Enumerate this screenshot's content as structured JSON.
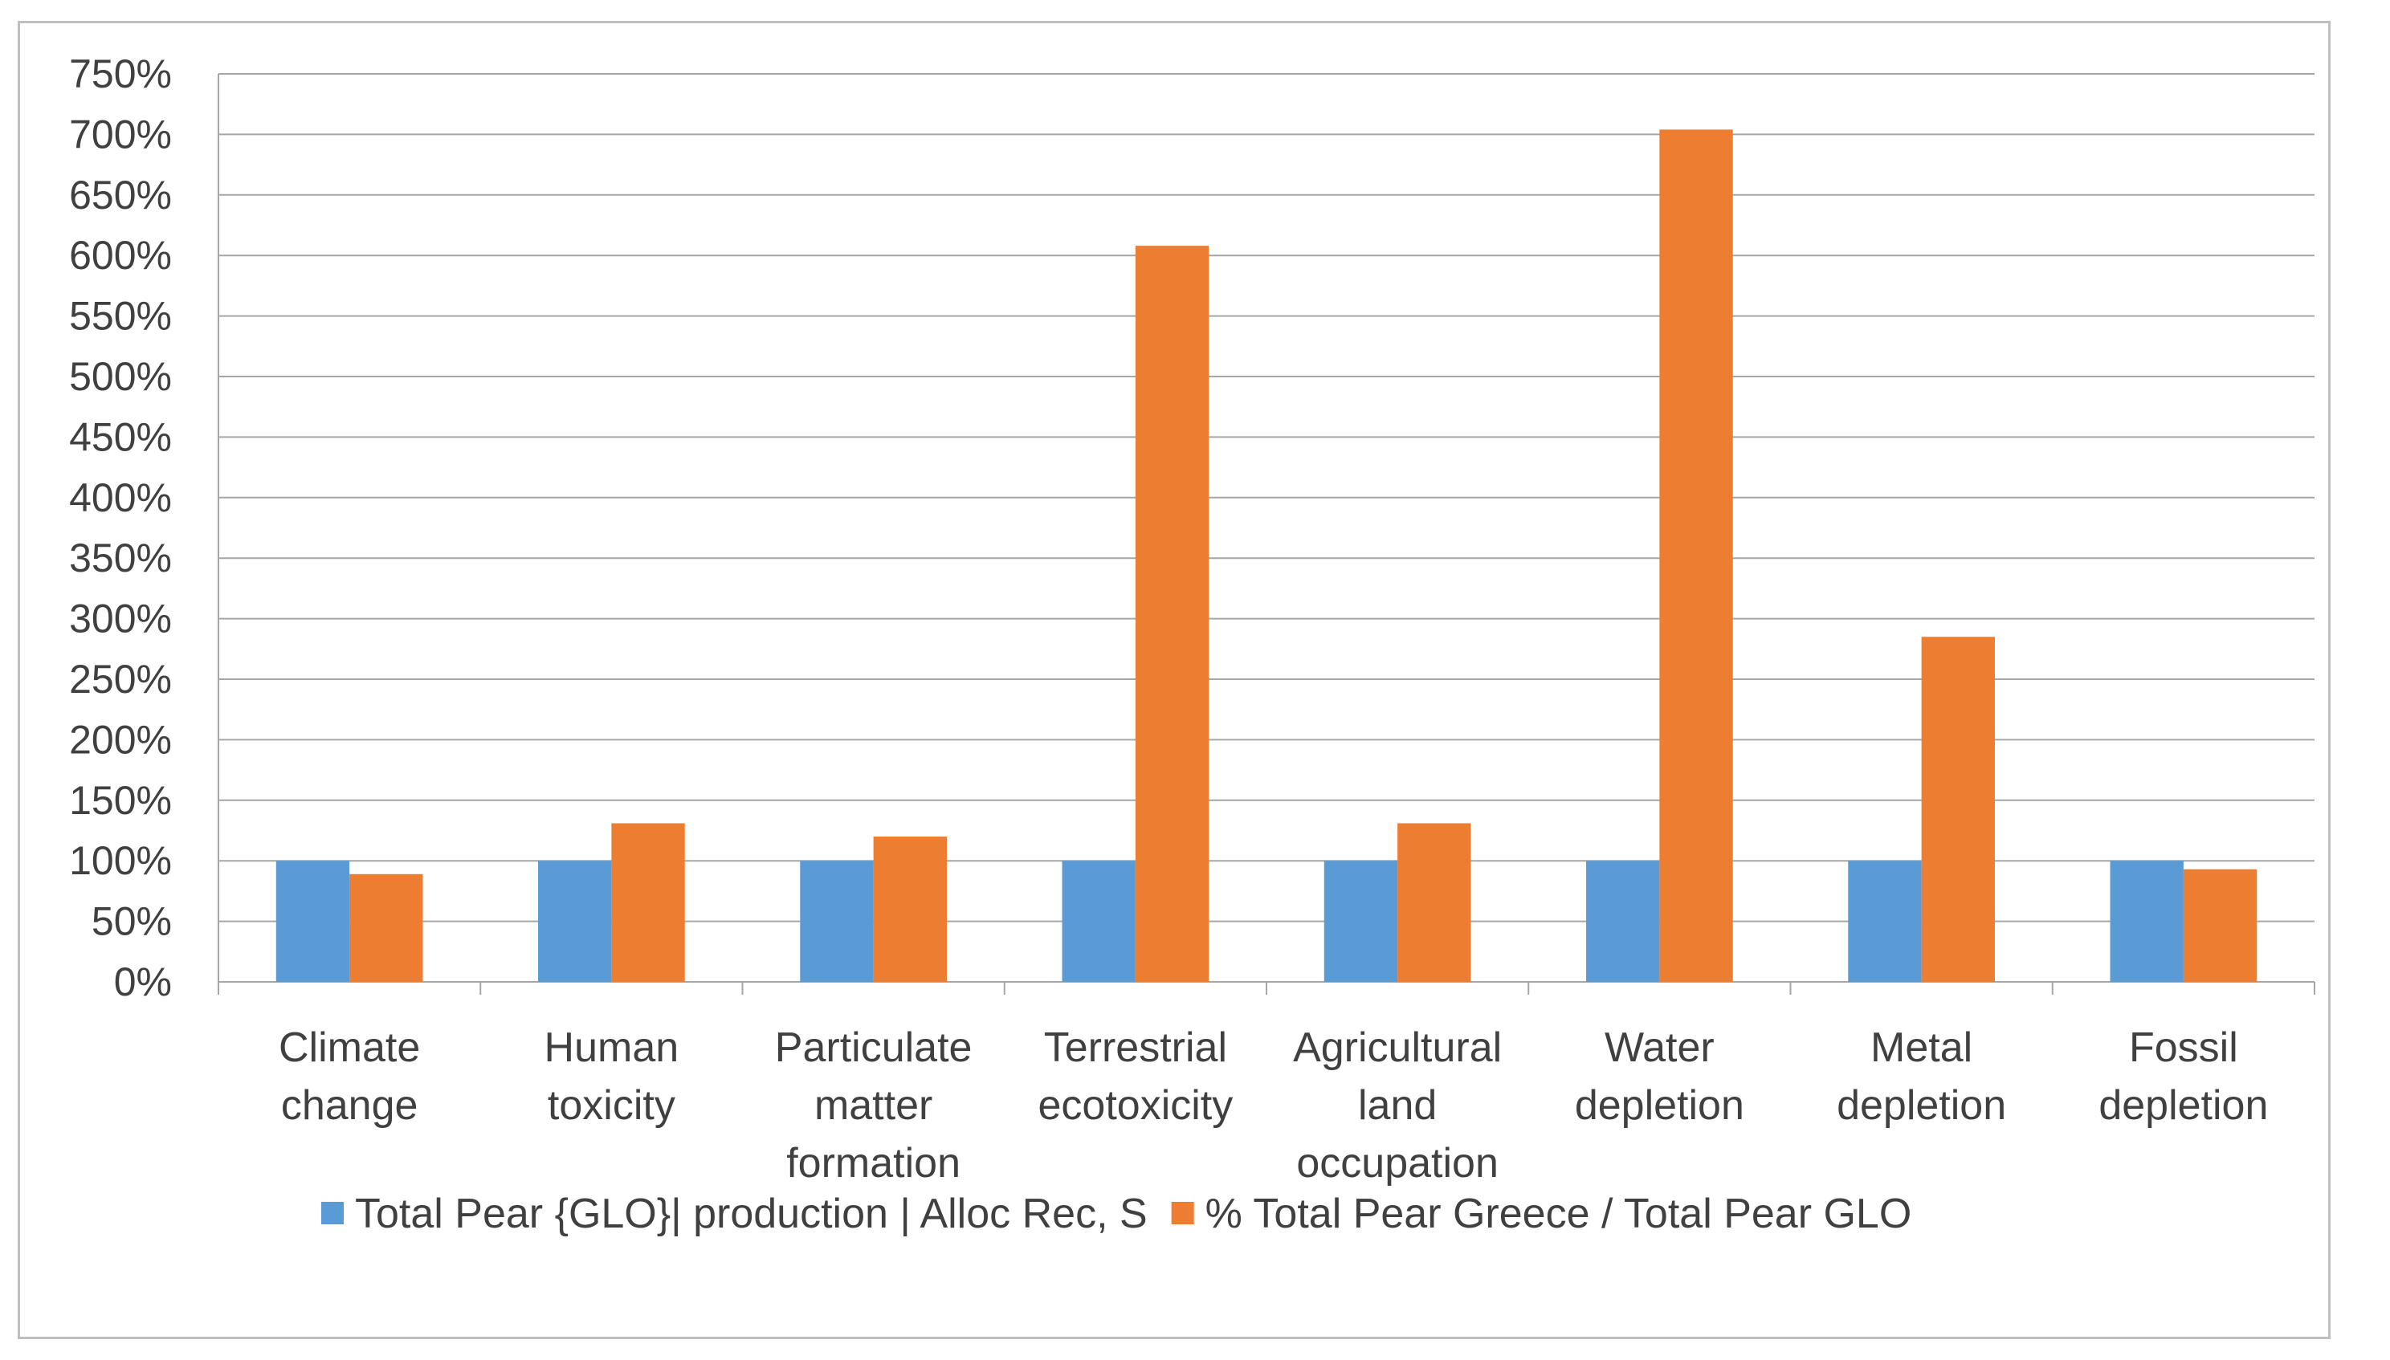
{
  "chart_data": {
    "type": "bar",
    "title": "",
    "xlabel": "",
    "ylabel": "",
    "ylim": [
      0,
      750
    ],
    "ytick_step": 50,
    "ytick_suffix": "%",
    "grid": true,
    "legend_position": "bottom",
    "categories": [
      [
        "Climate",
        "change"
      ],
      [
        "Human",
        "toxicity"
      ],
      [
        "Particulate",
        "matter",
        "formation"
      ],
      [
        "Terrestrial",
        "ecotoxicity"
      ],
      [
        "Agricultural",
        "land",
        "occupation"
      ],
      [
        "Water",
        "depletion"
      ],
      [
        "Metal",
        "depletion"
      ],
      [
        "Fossil",
        "depletion"
      ]
    ],
    "series": [
      {
        "name": "Total Pear {GLO}| production | Alloc Rec, S",
        "color": "#5b9bd5",
        "values": [
          100,
          100,
          100,
          100,
          100,
          100,
          100,
          100
        ]
      },
      {
        "name": "% Total Pear Greece / Total Pear GLO",
        "color": "#ed7d31",
        "values": [
          89,
          131,
          120,
          608,
          131,
          704,
          285,
          93
        ]
      }
    ],
    "axis_color": "#a6a6a6",
    "grid_color": "#a6a6a6"
  }
}
